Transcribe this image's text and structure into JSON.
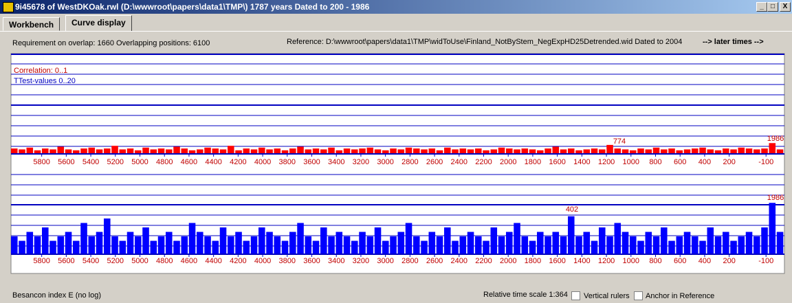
{
  "window": {
    "title": "9i45678 of WestDKOak.rwl    (D:\\wwwroot\\papers\\data1\\TMP\\)  1787 years  Dated to 200 - 1986",
    "buttons": [
      "_",
      "□",
      "X"
    ]
  },
  "tabs": [
    "Workbench",
    "Curve display"
  ],
  "info": {
    "requirement": "Requirement on overlap: 1660  Overlapping positions: 6100",
    "reference": "Reference: D:\\wwwroot\\papers\\data1\\TMP\\widToUse\\Finland_NotByStem_NegExpHD25Detrended.wid  Dated to 2004",
    "later": "--> later times -->"
  },
  "chart_data": [
    {
      "type": "bar",
      "legend": [
        "Correlation: 0..1",
        "TTest-values 0..20"
      ],
      "color": "#ff0000",
      "ylim": [
        0,
        1
      ],
      "xlim": [
        6050,
        -250
      ],
      "xticks": [
        5800,
        5600,
        5400,
        5200,
        5000,
        4800,
        4600,
        4400,
        4200,
        4000,
        3800,
        3600,
        3400,
        3200,
        3000,
        2800,
        2600,
        2400,
        2200,
        2000,
        1800,
        1600,
        1400,
        1200,
        1000,
        800,
        600,
        400,
        200,
        -100
      ],
      "annotations": [
        "774",
        "1986"
      ],
      "values": [
        0.06,
        0.05,
        0.07,
        0.04,
        0.06,
        0.05,
        0.08,
        0.05,
        0.04,
        0.06,
        0.07,
        0.05,
        0.06,
        0.09,
        0.05,
        0.06,
        0.04,
        0.07,
        0.05,
        0.06,
        0.05,
        0.08,
        0.06,
        0.04,
        0.05,
        0.07,
        0.06,
        0.05,
        0.09,
        0.04,
        0.06,
        0.05,
        0.07,
        0.05,
        0.06,
        0.04,
        0.06,
        0.08,
        0.05,
        0.06,
        0.05,
        0.07,
        0.04,
        0.06,
        0.05,
        0.06,
        0.07,
        0.05,
        0.04,
        0.06,
        0.05,
        0.07,
        0.06,
        0.05,
        0.06,
        0.04,
        0.07,
        0.05,
        0.06,
        0.05,
        0.06,
        0.04,
        0.05,
        0.07,
        0.06,
        0.05,
        0.06,
        0.05,
        0.04,
        0.06,
        0.08,
        0.05,
        0.06,
        0.04,
        0.05,
        0.06,
        0.05,
        0.1,
        0.06,
        0.05,
        0.04,
        0.06,
        0.05,
        0.07,
        0.05,
        0.06,
        0.04,
        0.05,
        0.06,
        0.07,
        0.05,
        0.04,
        0.06,
        0.05,
        0.07,
        0.06,
        0.05,
        0.06,
        0.12,
        0.05
      ]
    },
    {
      "type": "bar",
      "color": "#0000ff",
      "ylim": [
        0,
        20
      ],
      "xlim": [
        6050,
        -250
      ],
      "xticks": [
        5800,
        5600,
        5400,
        5200,
        5000,
        4800,
        4600,
        4400,
        4200,
        4000,
        3800,
        3600,
        3400,
        3200,
        3000,
        2800,
        2600,
        2400,
        2200,
        2000,
        1800,
        1600,
        1400,
        1200,
        1000,
        800,
        600,
        400,
        200,
        -100
      ],
      "annotations": [
        "402",
        "1986"
      ],
      "values": [
        4,
        3,
        5,
        4,
        6,
        3,
        4,
        5,
        3,
        7,
        4,
        5,
        8,
        4,
        3,
        5,
        4,
        6,
        3,
        4,
        5,
        3,
        4,
        7,
        5,
        4,
        3,
        6,
        4,
        5,
        3,
        4,
        6,
        5,
        4,
        3,
        5,
        7,
        4,
        3,
        6,
        4,
        5,
        4,
        3,
        5,
        4,
        6,
        3,
        4,
        5,
        7,
        4,
        3,
        5,
        4,
        6,
        3,
        4,
        5,
        4,
        3,
        6,
        4,
        5,
        7,
        4,
        3,
        5,
        4,
        5,
        4,
        8.5,
        4,
        5,
        3,
        6,
        4,
        7,
        5,
        4,
        3,
        5,
        4,
        6,
        3,
        4,
        5,
        4,
        3,
        6,
        4,
        5,
        3,
        4,
        5,
        4,
        6,
        11.5,
        5
      ]
    }
  ],
  "footer": {
    "index": "Besancon index E (no log)",
    "scale": "Relative time scale 1:364",
    "rulers": "Vertical rulers",
    "anchor": "Anchor in Reference"
  }
}
